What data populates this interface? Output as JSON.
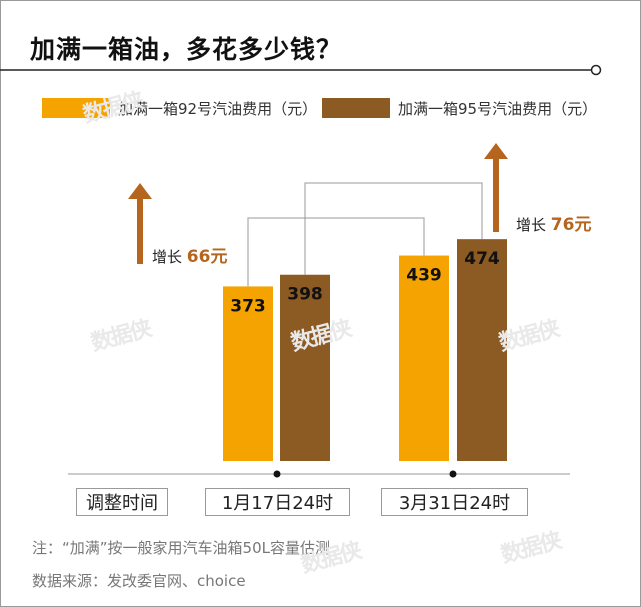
{
  "header": {
    "title": "加满一箱油，多花多少钱？"
  },
  "chart_data": {
    "type": "bar",
    "categories": [
      "1月17日24时",
      "3月31日24时"
    ],
    "category_header": "调整时间",
    "series": [
      {
        "name": "加满一箱92号汽油费用（元）",
        "values": [
          373,
          439
        ],
        "color": "#F5A300"
      },
      {
        "name": "加满一箱95号汽油费用（元）",
        "values": [
          398,
          474
        ],
        "color": "#8C5A23"
      }
    ],
    "annotations": [
      {
        "label": "增长",
        "value": "66元",
        "series": "92",
        "color": "#B5651D"
      },
      {
        "label": "增长",
        "value": "76元",
        "series": "95",
        "color": "#B5651D"
      }
    ],
    "arrow_color": "#B5651D",
    "legend_position": "top"
  },
  "notes": {
    "note": "注：“加满”按一般家用汽车油箱50L容量估测",
    "source": "数据来源：发改委官网、choice"
  },
  "watermark": "数据侠"
}
